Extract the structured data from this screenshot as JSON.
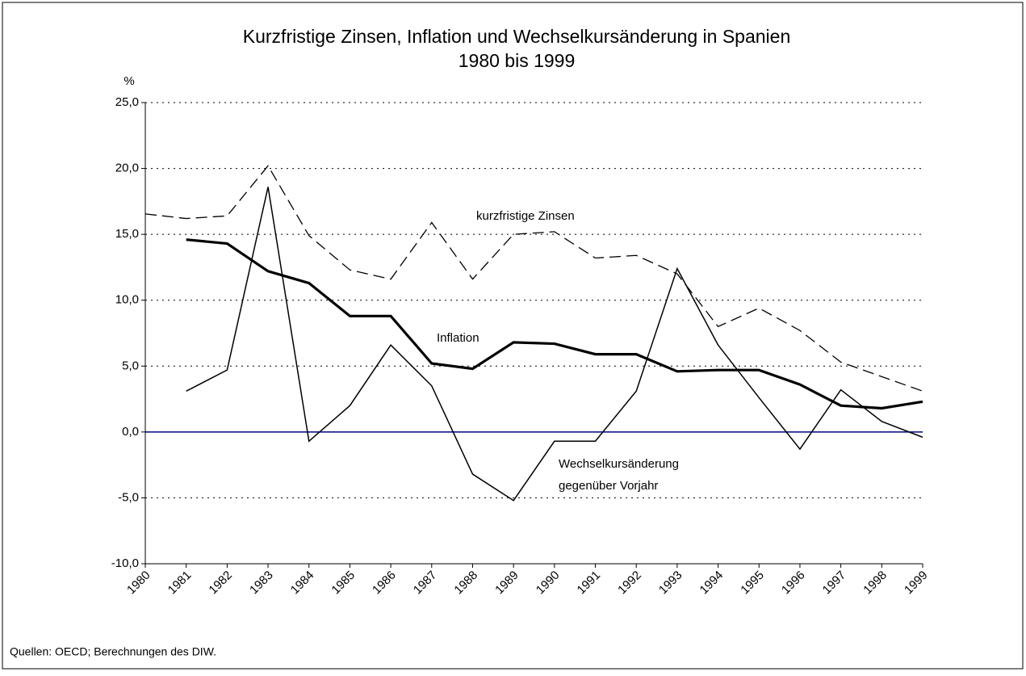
{
  "chart_data": {
    "type": "line",
    "title": [
      "Kurzfristige Zinsen, Inflation und Wechselkursänderung in Spanien",
      "1980 bis 1999"
    ],
    "y_unit": "%",
    "categories": [
      "1980",
      "1981",
      "1982",
      "1983",
      "1984",
      "1985",
      "1986",
      "1987",
      "1988",
      "1989",
      "1990",
      "1991",
      "1992",
      "1993",
      "1994",
      "1995",
      "1996",
      "1997",
      "1998",
      "1999"
    ],
    "series": [
      {
        "name": "kurzfristige Zinsen",
        "color": "#000000",
        "style": "dashed",
        "width": 1.3,
        "values": [
          16.55,
          16.2,
          16.4,
          20.2,
          14.9,
          12.3,
          11.6,
          15.9,
          11.6,
          15.0,
          15.2,
          13.2,
          13.4,
          12.0,
          8.0,
          9.4,
          7.7,
          5.3,
          4.2,
          3.1
        ]
      },
      {
        "name": "Inflation",
        "color": "#000000",
        "style": "solid",
        "width": 3.2,
        "values": [
          null,
          14.6,
          14.3,
          12.2,
          11.3,
          8.8,
          8.8,
          5.2,
          4.8,
          6.8,
          6.7,
          5.9,
          5.9,
          4.6,
          4.7,
          4.7,
          3.6,
          2.0,
          1.8,
          2.3
        ]
      },
      {
        "name": "Wechselkursänderung gegenüber Vorjahr",
        "color": "#000000",
        "style": "solid",
        "width": 1.5,
        "values": [
          null,
          3.1,
          4.7,
          18.6,
          -0.7,
          2.0,
          6.6,
          3.5,
          -3.2,
          -5.2,
          -0.7,
          -0.7,
          3.1,
          12.4,
          6.6,
          2.6,
          -1.3,
          3.2,
          0.8,
          -0.4
        ]
      }
    ],
    "annotations": [
      "kurzfristige Zinsen",
      "Inflation",
      "Wechselkursänderung",
      "gegenüber Vorjahr"
    ],
    "ylim": [
      -10,
      25
    ],
    "yticks": [
      {
        "value": -10,
        "label": "-10,0"
      },
      {
        "value": -5,
        "label": "-5,0"
      },
      {
        "value": 0,
        "label": "0,0"
      },
      {
        "value": 5,
        "label": "5,0"
      },
      {
        "value": 10,
        "label": "10,0"
      },
      {
        "value": 15,
        "label": "15,0"
      },
      {
        "value": 20,
        "label": "20,0"
      },
      {
        "value": 25,
        "label": "25,0"
      }
    ],
    "grid": true,
    "zero_line_color": "#000080",
    "source": "Quellen: OECD; Berechnungen des DIW."
  }
}
